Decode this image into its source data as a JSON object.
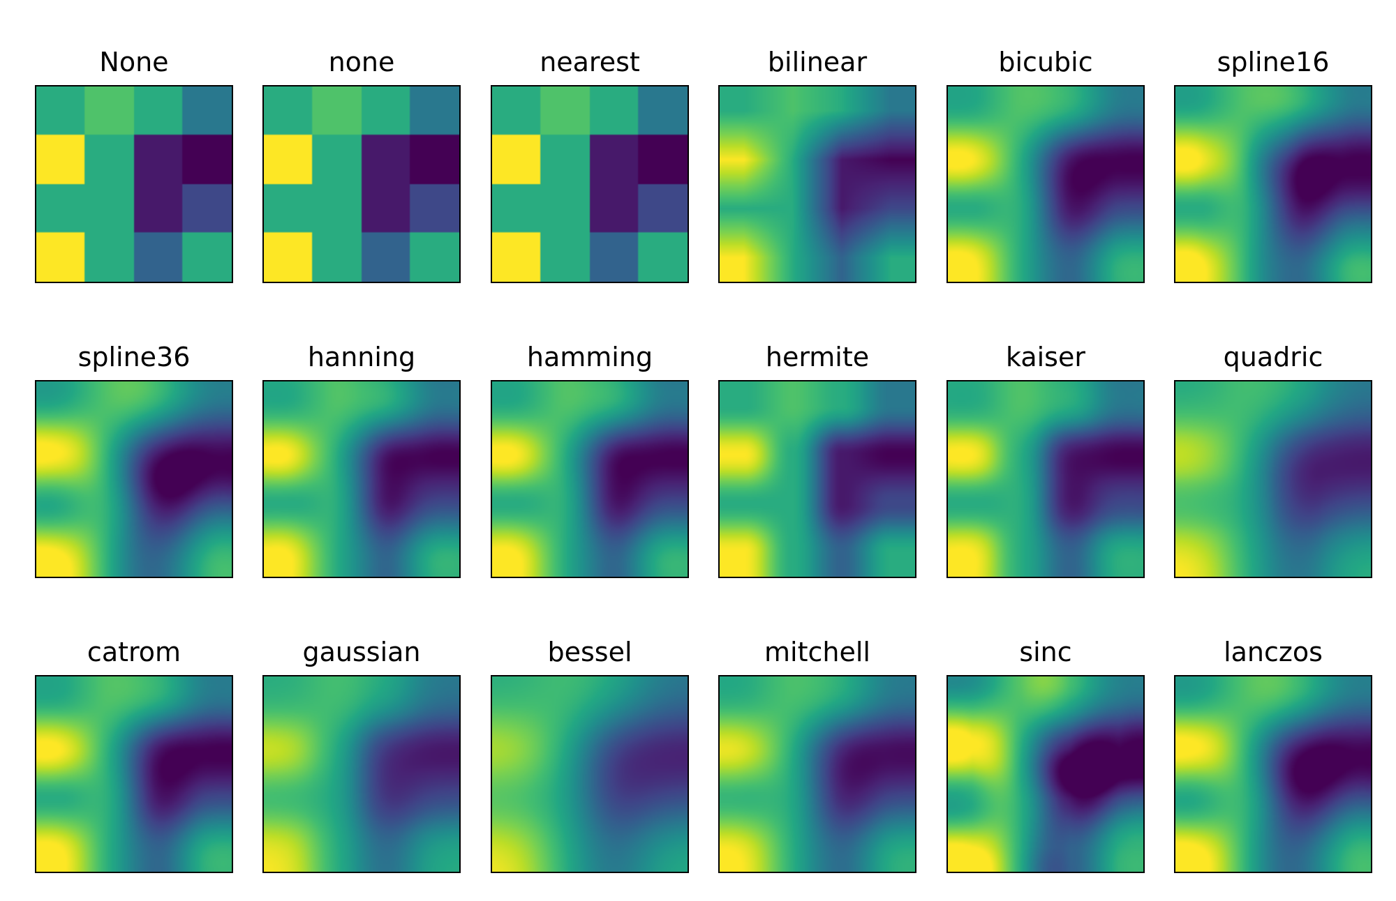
{
  "chart_data": {
    "type": "heatmap",
    "colormap": "viridis",
    "axes_visible": false,
    "grid": false,
    "data_matrix": [
      [
        0.62,
        0.72,
        0.62,
        0.4
      ],
      [
        1.0,
        0.62,
        0.07,
        0.0
      ],
      [
        0.62,
        0.62,
        0.07,
        0.22
      ],
      [
        1.0,
        0.62,
        0.32,
        0.62
      ]
    ],
    "panels": [
      {
        "title": "None",
        "method": "nearest"
      },
      {
        "title": "none",
        "method": "nearest"
      },
      {
        "title": "nearest",
        "method": "nearest"
      },
      {
        "title": "bilinear",
        "method": "bilinear"
      },
      {
        "title": "bicubic",
        "method": "bicubic"
      },
      {
        "title": "spline16",
        "method": "spline16"
      },
      {
        "title": "spline36",
        "method": "spline36"
      },
      {
        "title": "hanning",
        "method": "hanning"
      },
      {
        "title": "hamming",
        "method": "hamming"
      },
      {
        "title": "hermite",
        "method": "hermite"
      },
      {
        "title": "kaiser",
        "method": "kaiser"
      },
      {
        "title": "quadric",
        "method": "quadric"
      },
      {
        "title": "catrom",
        "method": "catrom"
      },
      {
        "title": "gaussian",
        "method": "gaussian"
      },
      {
        "title": "bessel",
        "method": "bessel"
      },
      {
        "title": "mitchell",
        "method": "mitchell"
      },
      {
        "title": "sinc",
        "method": "sinc"
      },
      {
        "title": "lanczos",
        "method": "lanczos"
      }
    ]
  }
}
